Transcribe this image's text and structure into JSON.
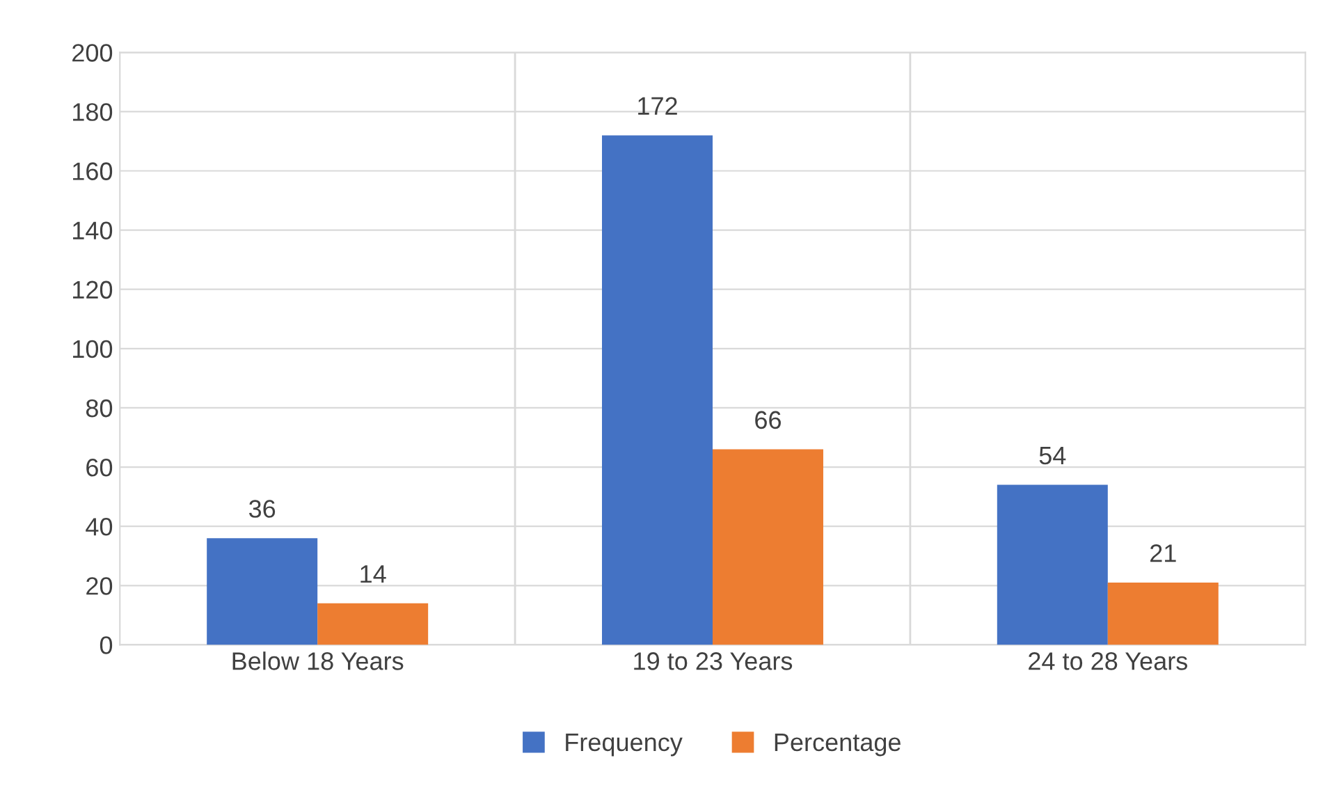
{
  "chart_data": {
    "type": "bar",
    "categories": [
      "Below 18 Years",
      "19 to 23 Years",
      "24 to 28 Years"
    ],
    "series": [
      {
        "name": "Frequency",
        "color": "#4472c4",
        "values": [
          36,
          172,
          54
        ]
      },
      {
        "name": "Percentage",
        "color": "#ed7d31",
        "values": [
          14,
          66,
          21
        ]
      }
    ],
    "ylim": [
      0,
      200
    ],
    "yticks": [
      0,
      20,
      40,
      60,
      80,
      100,
      120,
      140,
      160,
      180,
      200
    ],
    "grid": true,
    "legend": "bottom",
    "data_labels": true
  }
}
